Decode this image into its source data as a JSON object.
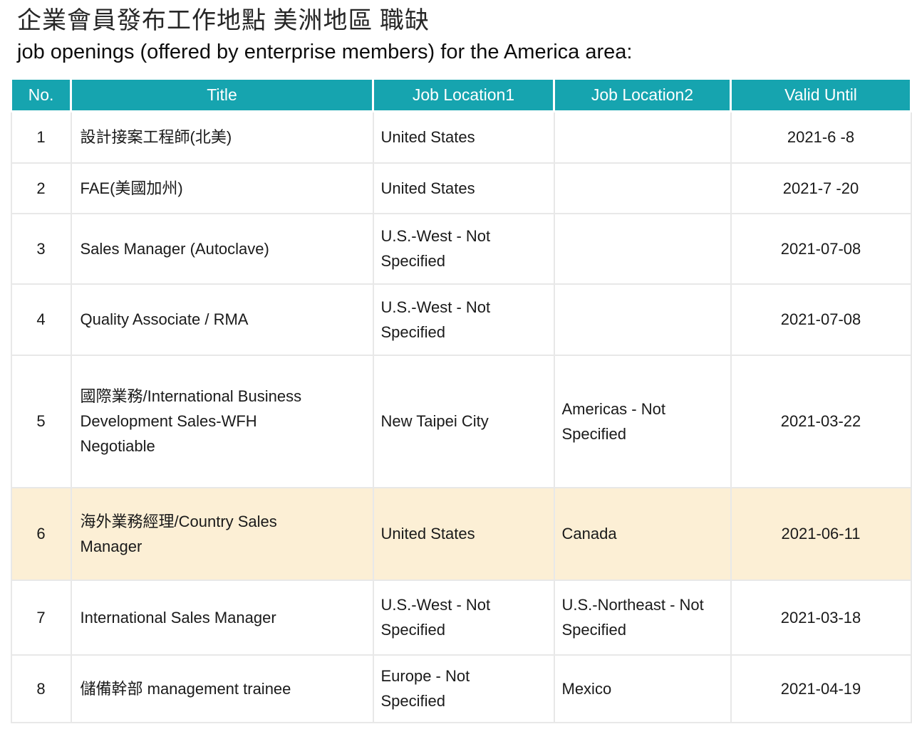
{
  "header": {
    "title_zh": "企業會員發布工作地點 美洲地區 職缺",
    "subtitle_en": "job openings (offered by enterprise members) for the America area:"
  },
  "table": {
    "columns": [
      "No.",
      "Title",
      "Job Location1",
      "Job Location2",
      "Valid Until"
    ],
    "rows": [
      {
        "no": "1",
        "title": "設計接案工程師(北美)",
        "loc1": "United States",
        "loc2": "",
        "valid": "2021-6 -8",
        "highlight": false
      },
      {
        "no": "2",
        "title": "FAE(美國加州)",
        "loc1": "United States",
        "loc2": "",
        "valid": "2021-7 -20",
        "highlight": false
      },
      {
        "no": "3",
        "title": "Sales Manager (Autoclave)",
        "loc1": "U.S.-West - Not\nSpecified",
        "loc2": "",
        "valid": "2021-07-08",
        "highlight": false
      },
      {
        "no": "4",
        "title": "Quality Associate / RMA",
        "loc1": "U.S.-West - Not\nSpecified",
        "loc2": "",
        "valid": "2021-07-08",
        "highlight": false
      },
      {
        "no": "5",
        "title": "國際業務/International Business\nDevelopment Sales-WFH\nNegotiable",
        "loc1": "New Taipei City",
        "loc2": "Americas - Not\nSpecified",
        "valid": "2021-03-22",
        "highlight": false
      },
      {
        "no": "6",
        "title": "海外業務經理/Country Sales\nManager",
        "loc1": "United States",
        "loc2": "Canada",
        "valid": "2021-06-11",
        "highlight": true
      },
      {
        "no": "7",
        "title": "International Sales Manager",
        "loc1": "U.S.-West - Not\nSpecified",
        "loc2": "U.S.-Northeast - Not\nSpecified",
        "valid": "2021-03-18",
        "highlight": false
      },
      {
        "no": "8",
        "title": "儲備幹部 management trainee",
        "loc1": "Europe - Not\nSpecified",
        "loc2": "Mexico",
        "valid": "2021-04-19",
        "highlight": false
      }
    ],
    "colors": {
      "header_bg": "#16a4af",
      "header_text": "#ffffff",
      "highlight_bg": "#fcefd5",
      "grid_line": "#e8e8e8",
      "body_text": "#1a1a1a"
    }
  }
}
